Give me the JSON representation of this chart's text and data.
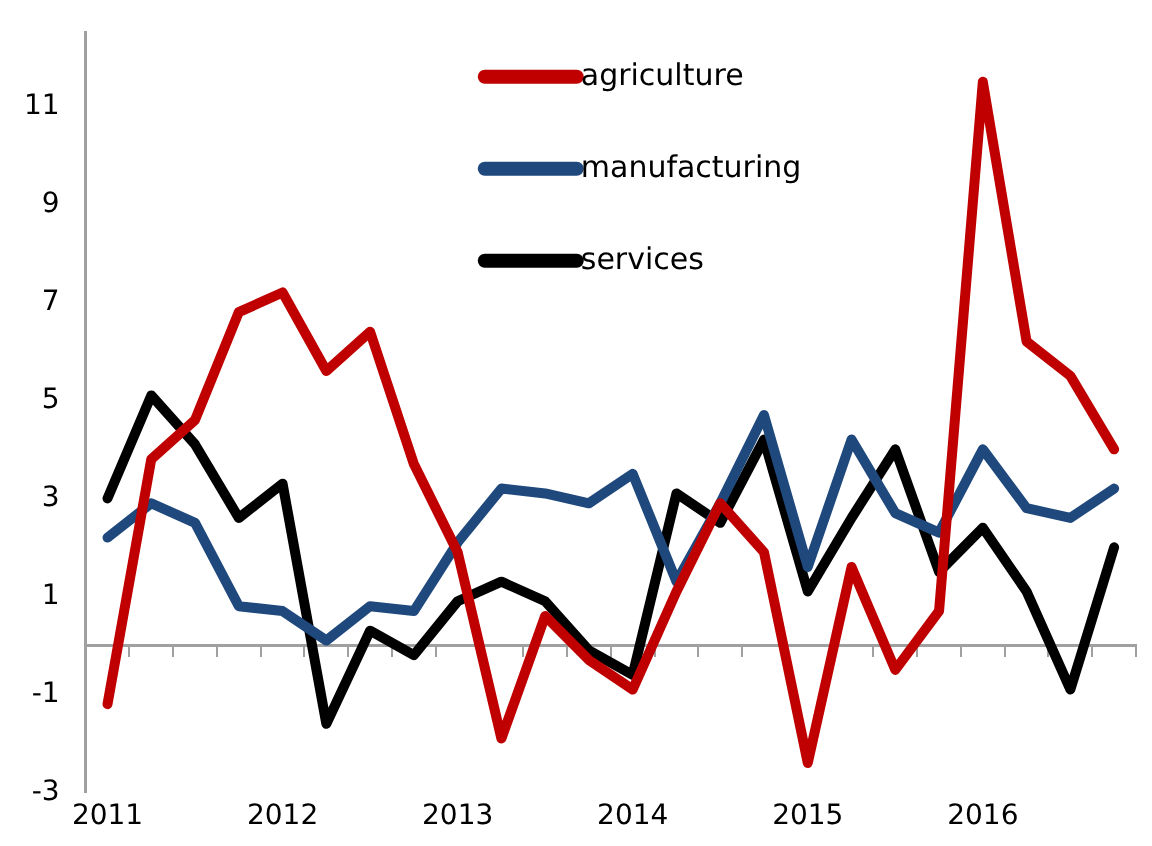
{
  "chart_data": {
    "type": "line",
    "categories": [
      "2011",
      null,
      null,
      null,
      "2012",
      null,
      null,
      null,
      "2013",
      null,
      null,
      null,
      "2014",
      null,
      null,
      null,
      "2015",
      null,
      null,
      null,
      "2016",
      null,
      null,
      null
    ],
    "series": [
      {
        "name": "agriculture",
        "color": "#c00000",
        "values": [
          -1.2,
          3.8,
          4.6,
          6.8,
          7.2,
          5.6,
          6.4,
          3.7,
          1.9,
          -1.9,
          0.6,
          -0.3,
          -0.9,
          1.1,
          2.9,
          1.9,
          -2.4,
          1.6,
          -0.5,
          0.7,
          11.5,
          6.2,
          5.5,
          4.0
        ]
      },
      {
        "name": "manufacturing",
        "color": "#1f497d",
        "values": [
          2.2,
          2.9,
          2.5,
          0.8,
          0.7,
          0.1,
          0.8,
          0.7,
          2.1,
          3.2,
          3.1,
          2.9,
          3.5,
          1.3,
          2.9,
          4.7,
          1.6,
          4.2,
          2.7,
          2.3,
          4.0,
          2.8,
          2.6,
          3.2
        ]
      },
      {
        "name": "services",
        "color": "#000000",
        "values": [
          3.0,
          5.1,
          4.1,
          2.6,
          3.3,
          -1.6,
          0.3,
          -0.2,
          0.9,
          1.3,
          0.9,
          -0.1,
          -0.6,
          3.1,
          2.5,
          4.2,
          1.1,
          2.6,
          4.0,
          1.5,
          2.4,
          1.1,
          -0.9,
          2.0
        ]
      }
    ],
    "ylim": [
      -3,
      12.5
    ],
    "yticks": [
      -3,
      -1,
      1,
      3,
      5,
      7,
      9,
      11
    ],
    "grid": false,
    "legend": "top",
    "marker": "none",
    "line_style": "solid"
  }
}
